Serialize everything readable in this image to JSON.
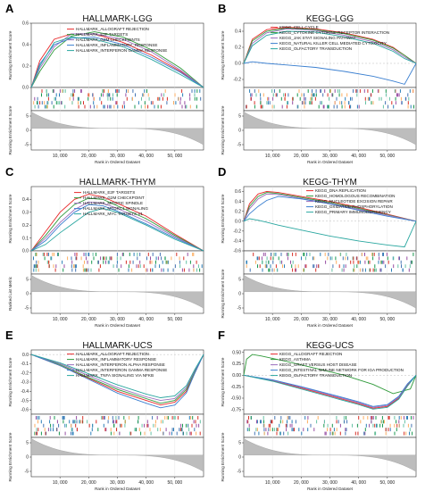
{
  "palette": [
    "#e8282a",
    "#2f9a3a",
    "#9a6dbd",
    "#3a7fd0",
    "#2aa7a0"
  ],
  "chart_data": [
    {
      "tag": "A",
      "type": "line",
      "title": "HALLMARK-LGG",
      "xlabel": "Rank in Ordered Dataset",
      "ylabel_top": "Running Enrichment Score",
      "ylabel_bottom": "Running Enrichment Score",
      "xlim": [
        0,
        60000
      ],
      "ylim": [
        0,
        0.6
      ],
      "xticks": [
        10000,
        20000,
        30000,
        40000,
        50000
      ],
      "xtick_labels": [
        "10, 000",
        "20, 000",
        "30, 000",
        "40, 000",
        "50, 000"
      ],
      "yticks": [
        0.0,
        0.2,
        0.4,
        0.6
      ],
      "ytick_labels": [
        "0.0",
        "0.2",
        "0.4",
        "0.6"
      ],
      "bottom_ticks": [
        "5",
        "0",
        "-5"
      ],
      "series": [
        {
          "name": "HALLMARK_ALLOGRAFT REJECTION",
          "x": [
            0,
            3000,
            8000,
            14000,
            22000,
            32000,
            42000,
            52000,
            60000
          ],
          "y": [
            0.0,
            0.25,
            0.45,
            0.5,
            0.5,
            0.42,
            0.3,
            0.15,
            0.0
          ]
        },
        {
          "name": "HALLMARK_E2F TARGETS",
          "x": [
            0,
            3000,
            8000,
            14000,
            22000,
            32000,
            42000,
            52000,
            60000
          ],
          "y": [
            0.0,
            0.15,
            0.35,
            0.48,
            0.52,
            0.47,
            0.35,
            0.18,
            0.0
          ]
        },
        {
          "name": "HALLMARK_G2M CHECKPOINTS",
          "x": [
            0,
            3000,
            8000,
            14000,
            22000,
            32000,
            42000,
            52000,
            60000
          ],
          "y": [
            0.0,
            0.18,
            0.38,
            0.5,
            0.5,
            0.45,
            0.33,
            0.16,
            0.0
          ]
        },
        {
          "name": "HALLMARK_INFLAMMATORY_RESPONSE",
          "x": [
            0,
            3000,
            8000,
            14000,
            22000,
            32000,
            42000,
            52000,
            60000
          ],
          "y": [
            0.0,
            0.22,
            0.4,
            0.46,
            0.47,
            0.4,
            0.28,
            0.14,
            0.0
          ]
        },
        {
          "name": "HALLMARK_INTERFERON GAMMA RESPONSE",
          "x": [
            0,
            3000,
            8000,
            14000,
            22000,
            32000,
            42000,
            52000,
            60000
          ],
          "y": [
            0.0,
            0.2,
            0.42,
            0.47,
            0.45,
            0.38,
            0.26,
            0.12,
            0.0
          ]
        }
      ]
    },
    {
      "tag": "B",
      "type": "line",
      "title": "KEGG-LGG",
      "xlabel": "Rank in Ordered Dataset",
      "ylabel_top": "Running Enrichment Score",
      "ylabel_bottom": "Running Enrichment Score",
      "xlim": [
        0,
        60000
      ],
      "ylim": [
        -0.3,
        0.5
      ],
      "xticks": [
        10000,
        20000,
        30000,
        40000,
        50000
      ],
      "xtick_labels": [
        "10, 000",
        "20, 000",
        "30, 000",
        "40, 000",
        "50, 000"
      ],
      "yticks": [
        -0.2,
        0.0,
        0.2,
        0.4
      ],
      "ytick_labels": [
        "-0.2",
        "0.0",
        "0.2",
        "0.4"
      ],
      "bottom_ticks": [
        "5",
        "0",
        "-5"
      ],
      "series": [
        {
          "name": "KEGG_CELL CYCLE",
          "x": [
            0,
            3000,
            8000,
            15000,
            25000,
            35000,
            45000,
            52000,
            56000,
            60000
          ],
          "y": [
            0.0,
            0.3,
            0.42,
            0.45,
            0.43,
            0.38,
            0.3,
            0.2,
            0.1,
            0.0
          ]
        },
        {
          "name": "KEGG_CYTOKINE CYTOKINE RECEPTOR INTERACTION",
          "x": [
            0,
            3000,
            8000,
            15000,
            25000,
            35000,
            45000,
            52000,
            56000,
            60000
          ],
          "y": [
            0.0,
            0.28,
            0.4,
            0.44,
            0.42,
            0.37,
            0.29,
            0.19,
            0.1,
            0.0
          ]
        },
        {
          "name": "KEGG_JAK STAT SIGNALING PATHWAY",
          "x": [
            0,
            3000,
            8000,
            15000,
            25000,
            35000,
            45000,
            52000,
            56000,
            60000
          ],
          "y": [
            0.0,
            0.25,
            0.38,
            0.43,
            0.41,
            0.35,
            0.27,
            0.17,
            0.08,
            0.0
          ]
        },
        {
          "name": "KEGG_NATURAL KILLER CELL MEDIATED CYTOXICITY",
          "x": [
            0,
            3000,
            8000,
            15000,
            25000,
            35000,
            45000,
            52000,
            56000,
            60000
          ],
          "y": [
            0.0,
            0.02,
            0.0,
            -0.02,
            -0.05,
            -0.1,
            -0.16,
            -0.22,
            -0.26,
            0.0
          ]
        },
        {
          "name": "KEGG_OLFACTORY TRANSDUCTION",
          "x": [
            0,
            3000,
            8000,
            15000,
            25000,
            35000,
            45000,
            52000,
            56000,
            60000
          ],
          "y": [
            0.0,
            0.22,
            0.35,
            0.4,
            0.39,
            0.33,
            0.25,
            0.15,
            0.06,
            0.0
          ]
        }
      ]
    },
    {
      "tag": "C",
      "type": "line",
      "title": "HALLMARK-THYM",
      "xlabel": "Rank in Ordered Dataset",
      "ylabel_top": "Running Enrichment Score",
      "ylabel_bottom": "Ranked List Metric",
      "xlim": [
        0,
        60000
      ],
      "ylim": [
        0,
        0.5
      ],
      "xticks": [
        10000,
        20000,
        30000,
        40000,
        50000
      ],
      "xtick_labels": [
        "10, 000",
        "20, 000",
        "30, 000",
        "40, 000",
        "50, 000"
      ],
      "yticks": [
        0.0,
        0.1,
        0.2,
        0.3,
        0.4
      ],
      "ytick_labels": [
        "0.0",
        "0.1",
        "0.2",
        "0.3",
        "0.4"
      ],
      "bottom_ticks": [
        "5",
        "0",
        "-5"
      ],
      "series": [
        {
          "name": "HALLMARK_E2F TARGETS",
          "x": [
            0,
            5000,
            10000,
            15000,
            20000,
            25000,
            30000,
            40000,
            50000,
            60000
          ],
          "y": [
            0.0,
            0.15,
            0.3,
            0.4,
            0.44,
            0.42,
            0.37,
            0.27,
            0.13,
            0.0
          ]
        },
        {
          "name": "HALLMARK_G2M CHECKPOINT",
          "x": [
            0,
            5000,
            10000,
            15000,
            20000,
            25000,
            30000,
            40000,
            50000,
            60000
          ],
          "y": [
            0.0,
            0.12,
            0.26,
            0.36,
            0.41,
            0.4,
            0.35,
            0.25,
            0.12,
            0.0
          ]
        },
        {
          "name": "HALLMARK_MITOTIC SPINDLE",
          "x": [
            0,
            5000,
            10000,
            15000,
            20000,
            25000,
            30000,
            40000,
            50000,
            60000
          ],
          "y": [
            0.0,
            0.1,
            0.22,
            0.32,
            0.38,
            0.37,
            0.33,
            0.23,
            0.11,
            0.0
          ]
        },
        {
          "name": "HALLMARK_MTORC1 SIGNALING",
          "x": [
            0,
            5000,
            10000,
            15000,
            20000,
            25000,
            30000,
            40000,
            50000,
            60000
          ],
          "y": [
            0.0,
            0.08,
            0.2,
            0.3,
            0.36,
            0.35,
            0.31,
            0.21,
            0.1,
            0.0
          ]
        },
        {
          "name": "HALLMARK_MYC TARGETS V1",
          "x": [
            0,
            5000,
            10000,
            15000,
            20000,
            25000,
            30000,
            40000,
            50000,
            60000
          ],
          "y": [
            0.0,
            0.05,
            0.14,
            0.22,
            0.3,
            0.33,
            0.3,
            0.2,
            0.09,
            0.0
          ]
        }
      ]
    },
    {
      "tag": "D",
      "type": "line",
      "title": "KEGG-THYM",
      "xlabel": "Rank in Ordered Dataset",
      "ylabel_top": "Running Enrichment Score",
      "ylabel_bottom": "Running Enrichment Score",
      "xlim": [
        0,
        60000
      ],
      "ylim": [
        -0.6,
        0.7
      ],
      "xticks": [
        10000,
        20000,
        30000,
        40000,
        50000
      ],
      "xtick_labels": [
        "10, 000",
        "20, 000",
        "30, 000",
        "40, 000",
        "50, 000"
      ],
      "yticks": [
        -0.6,
        -0.4,
        -0.2,
        0.0,
        0.2,
        0.4,
        0.6
      ],
      "ytick_labels": [
        "-0.6",
        "-0.4",
        "-0.2",
        "0.0",
        "0.2",
        "0.4",
        "0.6"
      ],
      "bottom_ticks": [
        "5",
        "0",
        "-5"
      ],
      "series": [
        {
          "name": "KEGG_DNA REPLICATION",
          "x": [
            0,
            2000,
            5000,
            8000,
            12000,
            20000,
            30000,
            40000,
            50000,
            60000
          ],
          "y": [
            0.0,
            0.35,
            0.55,
            0.6,
            0.58,
            0.5,
            0.4,
            0.28,
            0.14,
            0.0
          ]
        },
        {
          "name": "KEGG_HOMOLOGOUS RECOMBINATION",
          "x": [
            0,
            2000,
            5000,
            8000,
            12000,
            20000,
            30000,
            40000,
            50000,
            60000
          ],
          "y": [
            0.0,
            0.3,
            0.5,
            0.58,
            0.56,
            0.48,
            0.38,
            0.26,
            0.13,
            0.0
          ]
        },
        {
          "name": "KEGG_NUCLEOTIDE EXCISION REPAIR",
          "x": [
            0,
            2000,
            5000,
            8000,
            12000,
            20000,
            30000,
            40000,
            50000,
            60000
          ],
          "y": [
            0.0,
            0.25,
            0.45,
            0.55,
            0.54,
            0.46,
            0.36,
            0.24,
            0.12,
            0.0
          ]
        },
        {
          "name": "KEGG_OXIDATIVE PHOSPHORYLATION",
          "x": [
            0,
            2000,
            5000,
            8000,
            12000,
            20000,
            30000,
            40000,
            50000,
            60000
          ],
          "y": [
            0.0,
            0.15,
            0.3,
            0.42,
            0.5,
            0.45,
            0.35,
            0.22,
            0.1,
            0.0
          ]
        },
        {
          "name": "KEGG_PRIMARY IMMUNODEFICIENCY",
          "x": [
            0,
            2000,
            5000,
            8000,
            12000,
            20000,
            30000,
            40000,
            50000,
            56000,
            60000
          ],
          "y": [
            0.0,
            0.05,
            0.02,
            -0.02,
            -0.08,
            -0.18,
            -0.3,
            -0.4,
            -0.48,
            -0.52,
            0.0
          ]
        }
      ]
    },
    {
      "tag": "E",
      "type": "line",
      "title": "HALLMARK-UCS",
      "xlabel": "Rank in Ordered Dataset",
      "ylabel_top": "Running Enrichment Score",
      "ylabel_bottom": "Running Enrichment Score",
      "xlim": [
        0,
        60000
      ],
      "ylim": [
        -0.65,
        0.05
      ],
      "xticks": [
        10000,
        20000,
        30000,
        40000,
        50000
      ],
      "xtick_labels": [
        "10, 000",
        "20, 000",
        "30, 000",
        "40, 000",
        "50, 000"
      ],
      "yticks": [
        0.0,
        -0.1,
        -0.2,
        -0.3,
        -0.4,
        -0.5,
        -0.6
      ],
      "ytick_labels": [
        "0.0",
        "-0.1",
        "-0.2",
        "-0.3",
        "-0.4",
        "-0.5",
        "-0.6"
      ],
      "bottom_ticks": [
        "5",
        "0",
        "-5"
      ],
      "series": [
        {
          "name": "HALLMARK_ALLOGRAFT REJECTION",
          "x": [
            0,
            10000,
            20000,
            30000,
            40000,
            45000,
            50000,
            54000,
            57000,
            60000
          ],
          "y": [
            0.0,
            -0.12,
            -0.26,
            -0.4,
            -0.5,
            -0.55,
            -0.52,
            -0.4,
            -0.2,
            0.0
          ]
        },
        {
          "name": "HALLMARK_INFLAMMATORY RESPONSE",
          "x": [
            0,
            10000,
            20000,
            30000,
            40000,
            45000,
            50000,
            54000,
            57000,
            60000
          ],
          "y": [
            0.0,
            -0.11,
            -0.25,
            -0.38,
            -0.48,
            -0.53,
            -0.5,
            -0.38,
            -0.18,
            0.0
          ]
        },
        {
          "name": "HALLMARK_INTERFERON ALPHA RESPONSE",
          "x": [
            0,
            10000,
            20000,
            30000,
            40000,
            45000,
            50000,
            54000,
            57000,
            60000
          ],
          "y": [
            0.0,
            -0.1,
            -0.23,
            -0.36,
            -0.46,
            -0.5,
            -0.48,
            -0.36,
            -0.17,
            0.0
          ]
        },
        {
          "name": "HALLMARK_INTERFERON GAMMA RESPONSE",
          "x": [
            0,
            10000,
            20000,
            30000,
            40000,
            45000,
            50000,
            54000,
            57000,
            60000
          ],
          "y": [
            0.0,
            -0.12,
            -0.27,
            -0.42,
            -0.53,
            -0.58,
            -0.55,
            -0.42,
            -0.2,
            0.0
          ]
        },
        {
          "name": "HALLMARK_TNFA SIGNALING VIA NFKB",
          "x": [
            0,
            10000,
            20000,
            30000,
            40000,
            45000,
            50000,
            54000,
            57000,
            60000
          ],
          "y": [
            0.0,
            -0.09,
            -0.21,
            -0.33,
            -0.43,
            -0.47,
            -0.45,
            -0.34,
            -0.16,
            0.0
          ]
        }
      ]
    },
    {
      "tag": "F",
      "type": "line",
      "title": "KEGG-UCS",
      "xlabel": "Rank in Ordered Dataset",
      "ylabel_top": "Running Enrichment Score",
      "ylabel_bottom": "Running Enrichment Score",
      "xlim": [
        0,
        60000
      ],
      "ylim": [
        -0.85,
        0.55
      ],
      "xticks": [
        10000,
        20000,
        30000,
        40000,
        50000
      ],
      "xtick_labels": [
        "10, 000",
        "20, 000",
        "30, 000",
        "40, 000",
        "50, 000"
      ],
      "yticks": [
        0.5,
        0.25,
        0.0,
        -0.25,
        -0.5,
        -0.75
      ],
      "ytick_labels": [
        "0.50",
        "0.25",
        "0.00",
        "-0.25",
        "-0.50",
        "-0.75"
      ],
      "bottom_ticks": [
        "5",
        "0",
        "-5"
      ],
      "series": [
        {
          "name": "KEGG_ALLOGRAFT REJECTION",
          "x": [
            0,
            10000,
            20000,
            30000,
            40000,
            45000,
            50000,
            54000,
            57000,
            60000
          ],
          "y": [
            0.0,
            -0.12,
            -0.28,
            -0.45,
            -0.62,
            -0.72,
            -0.68,
            -0.5,
            -0.22,
            0.0
          ]
        },
        {
          "name": "KEGG_ASTHMA",
          "x": [
            0,
            1000,
            3000,
            6000,
            15000,
            25000,
            35000,
            45000,
            52000,
            58000,
            60000
          ],
          "y": [
            0.0,
            0.35,
            0.45,
            0.42,
            0.3,
            0.15,
            0.0,
            -0.2,
            -0.4,
            -0.3,
            0.0
          ]
        },
        {
          "name": "KEGG_GRAFT VERSUS HOST DISEASE",
          "x": [
            0,
            10000,
            20000,
            30000,
            40000,
            45000,
            50000,
            54000,
            57000,
            60000
          ],
          "y": [
            0.0,
            -0.11,
            -0.26,
            -0.43,
            -0.6,
            -0.7,
            -0.66,
            -0.48,
            -0.2,
            0.0
          ]
        },
        {
          "name": "KEGG_INTESTINAL IMMUNE NETWORK FOR IGA PRODUCTION",
          "x": [
            0,
            10000,
            20000,
            30000,
            40000,
            45000,
            50000,
            54000,
            57000,
            60000
          ],
          "y": [
            0.0,
            -0.1,
            -0.25,
            -0.41,
            -0.58,
            -0.68,
            -0.64,
            -0.46,
            -0.19,
            0.0
          ]
        },
        {
          "name": "KEGG_OLFACTORY TRANSDUCTION",
          "x": [
            0,
            10000,
            20000,
            30000,
            40000,
            45000,
            50000,
            54000,
            57000,
            60000
          ],
          "y": [
            0.0,
            -0.13,
            -0.3,
            -0.47,
            -0.64,
            -0.74,
            -0.7,
            -0.52,
            -0.24,
            0.0
          ]
        }
      ]
    }
  ]
}
